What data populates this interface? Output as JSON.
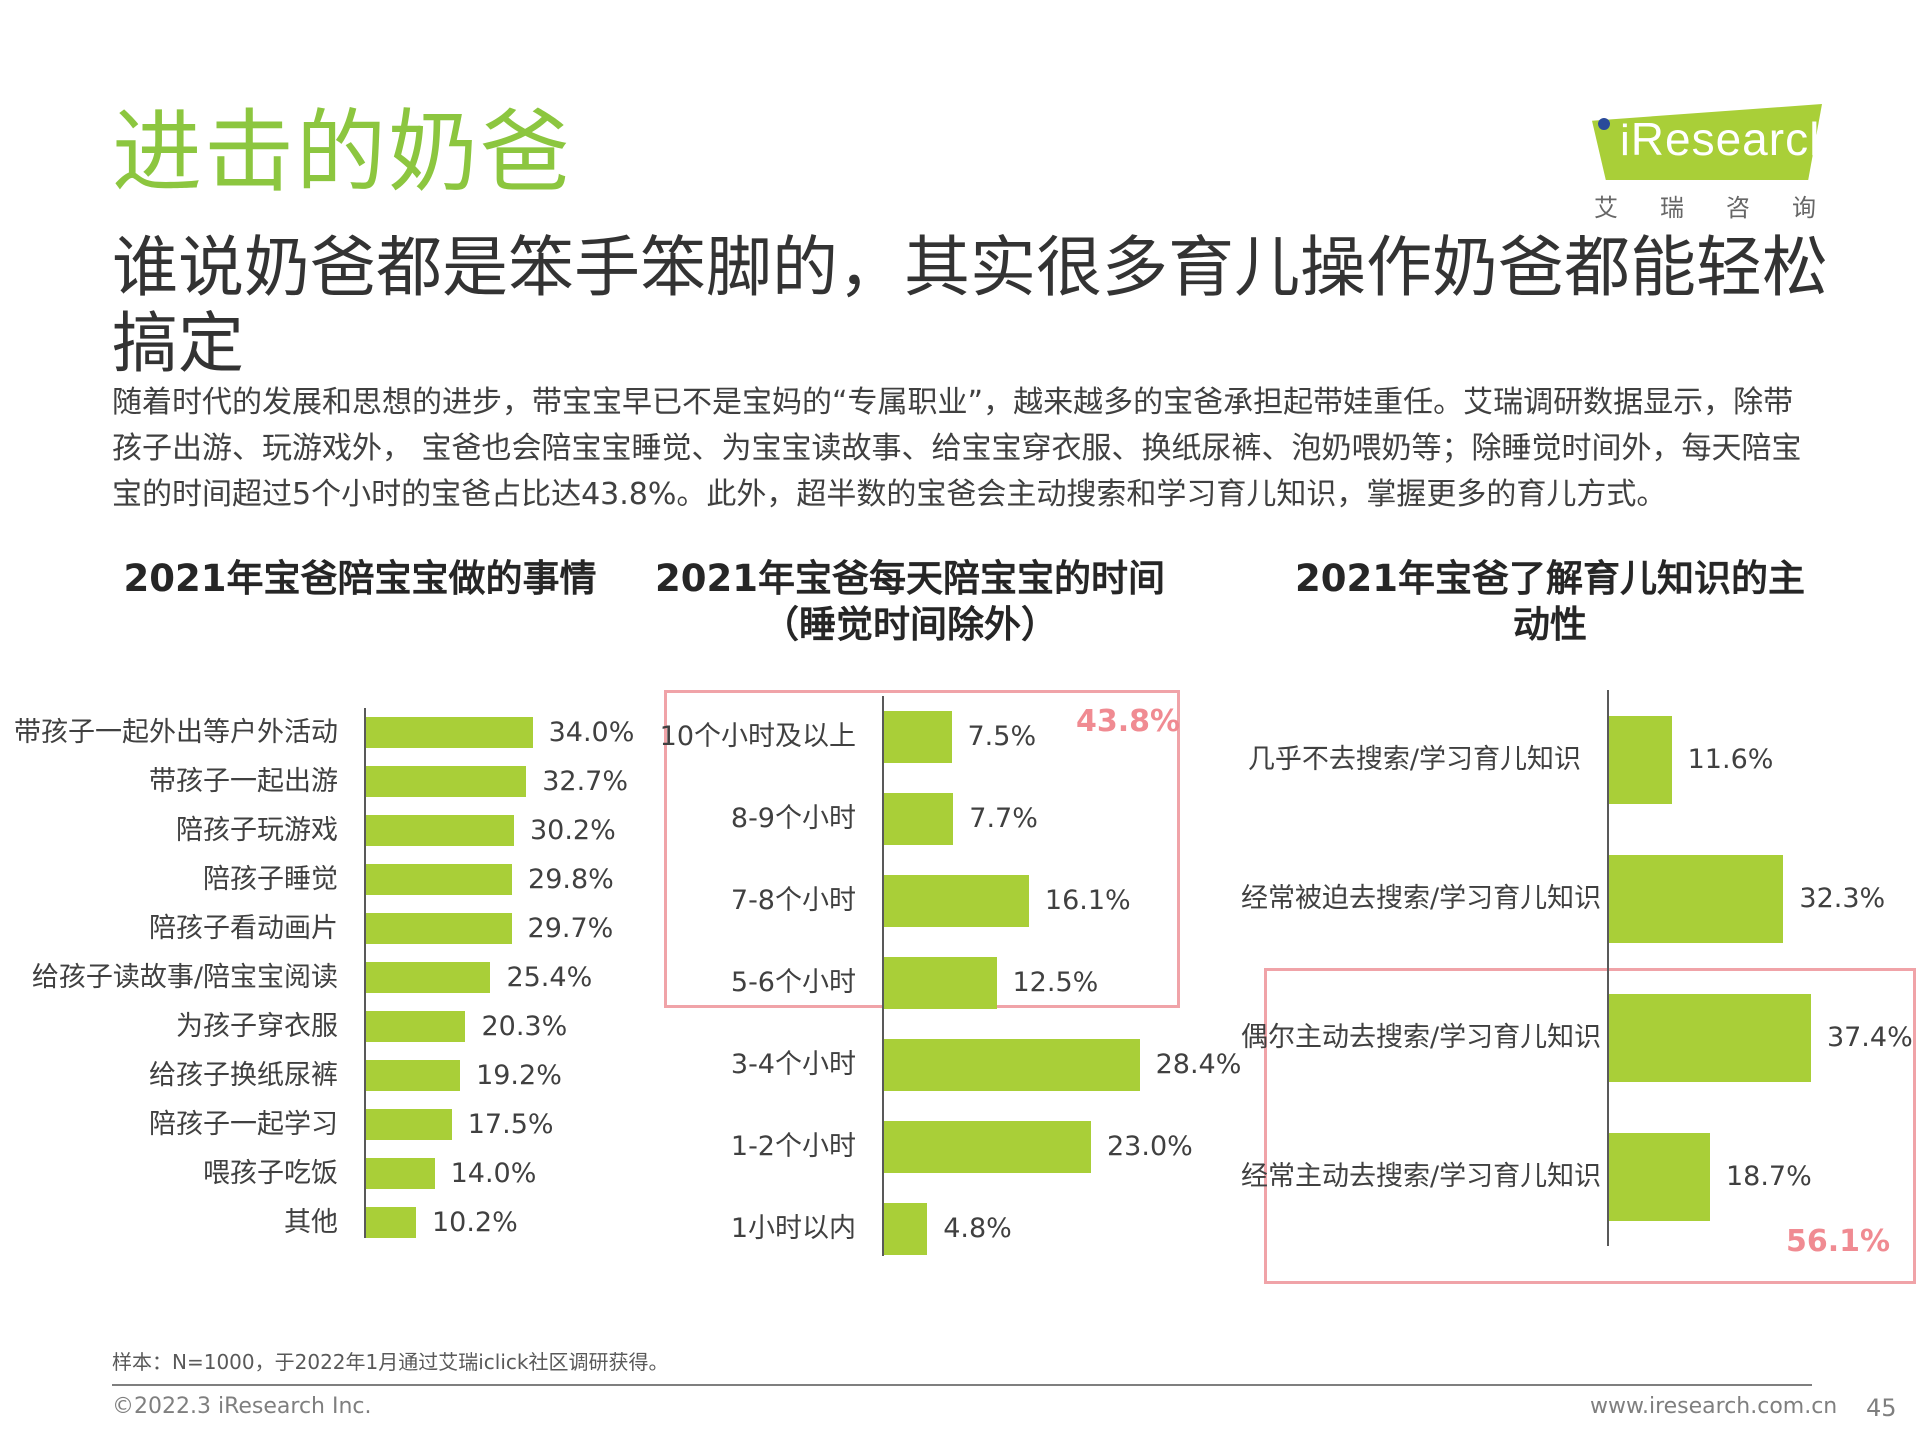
{
  "header": {
    "title": "进击的奶爸",
    "subtitle": "谁说奶爸都是笨手笨脚的，其实很多育儿操作奶爸都能轻松搞定",
    "body": "随着时代的发展和思想的进步，带宝宝早已不是宝妈的“专属职业”，越来越多的宝爸承担起带娃重任。艾瑞调研数据显示，除带孩子出游、玩游戏外， 宝爸也会陪宝宝睡觉、为宝宝读故事、给宝宝穿衣服、换纸尿裤、泡奶喂奶等；除睡觉时间外，每天陪宝宝的时间超过5个小时的宝爸占比达43.8%。此外，超半数的宝爸会主动搜索和学习育儿知识，掌握更多的育儿方式。"
  },
  "logo": {
    "brand": "Research",
    "sub": "艾瑞咨询"
  },
  "colors": {
    "title": "#8cc63f",
    "bar": "#a9cf38",
    "highlight": "#f08b92"
  },
  "chart_data": [
    {
      "type": "bar",
      "orientation": "horizontal",
      "title": "2021年宝爸陪宝宝做的事情",
      "categories": [
        "带孩子一起外出等户外活动",
        "带孩子一起出游",
        "陪孩子玩游戏",
        "陪孩子睡觉",
        "陪孩子看动画片",
        "给孩子读故事/陪宝宝阅读",
        "为孩子穿衣服",
        "给孩子换纸尿裤",
        "陪孩子一起学习",
        "喂孩子吃饭",
        "其他"
      ],
      "values": [
        34.0,
        32.7,
        30.2,
        29.8,
        29.7,
        25.4,
        20.3,
        19.2,
        17.5,
        14.0,
        10.2
      ],
      "labels": [
        "34.0%",
        "32.7%",
        "30.2%",
        "29.8%",
        "29.7%",
        "25.4%",
        "20.3%",
        "19.2%",
        "17.5%",
        "14.0%",
        "10.2%"
      ],
      "unit": "%"
    },
    {
      "type": "bar",
      "orientation": "horizontal",
      "title": "2021年宝爸每天陪宝宝的时间（睡觉时间除外）",
      "categories": [
        "10个小时及以上",
        "8-9个小时",
        "7-8个小时",
        "5-6个小时",
        "3-4个小时",
        "1-2个小时",
        "1小时以内"
      ],
      "values": [
        7.5,
        7.7,
        16.1,
        12.5,
        28.4,
        23.0,
        4.8
      ],
      "labels": [
        "7.5%",
        "7.7%",
        "16.1%",
        "12.5%",
        "28.4%",
        "23.0%",
        "4.8%"
      ],
      "highlight": {
        "label": "43.8%",
        "categories": [
          "10个小时及以上",
          "8-9个小时",
          "7-8个小时",
          "5-6个小时"
        ]
      },
      "unit": "%"
    },
    {
      "type": "bar",
      "orientation": "horizontal",
      "title": "2021年宝爸了解育儿知识的主动性",
      "categories": [
        "几乎不去搜索/学习育儿知识",
        "经常被迫去搜索/学习育儿知识",
        "偶尔主动去搜索/学习育儿知识",
        "经常主动去搜索/学习育儿知识"
      ],
      "values": [
        11.6,
        32.3,
        37.4,
        18.7
      ],
      "labels": [
        "11.6%",
        "32.3%",
        "37.4%",
        "18.7%"
      ],
      "highlight": {
        "label": "56.1%",
        "categories": [
          "偶尔主动去搜索/学习育儿知识",
          "经常主动去搜索/学习育儿知识"
        ]
      },
      "unit": "%"
    }
  ],
  "footer": {
    "note": "样本：N=1000，于2022年1月通过艾瑞iclick社区调研获得。",
    "copyright": "©2022.3 iResearch Inc.",
    "website": "www.iresearch.com.cn",
    "page": "45"
  }
}
